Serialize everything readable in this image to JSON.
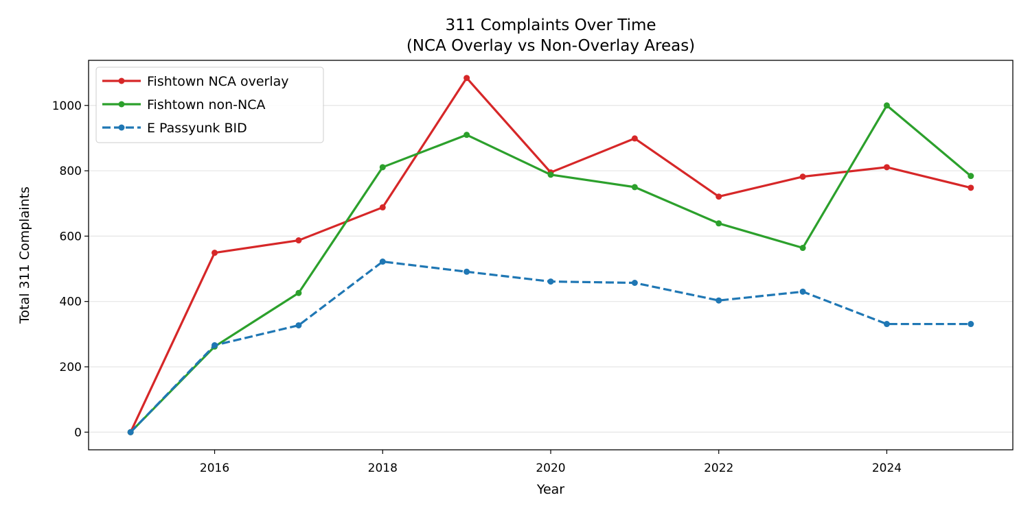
{
  "chart_data": {
    "type": "line",
    "title": "311 Complaints Over Time",
    "subtitle": "(NCA Overlay vs Non-Overlay Areas)",
    "xlabel": "Year",
    "ylabel": "Total 311 Complaints",
    "xlim": [
      2014.5,
      2025.5
    ],
    "ylim": [
      -54,
      1138
    ],
    "xticks": [
      2016,
      2018,
      2020,
      2022,
      2024
    ],
    "yticks": [
      0,
      200,
      400,
      600,
      800,
      1000
    ],
    "grid": "horizontal",
    "legend_position": "top-left",
    "x": [
      2015,
      2016,
      2017,
      2018,
      2019,
      2020,
      2021,
      2022,
      2023,
      2024,
      2025
    ],
    "series": [
      {
        "name": "Fishtown NCA overlay",
        "color": "#d62728",
        "style": "solid",
        "values": [
          0,
          549,
          587,
          688,
          1084,
          795,
          899,
          721,
          782,
          811,
          748
        ]
      },
      {
        "name": "Fishtown non-NCA",
        "color": "#2ca02c",
        "style": "solid",
        "values": [
          0,
          262,
          426,
          811,
          910,
          788,
          750,
          639,
          564,
          1000,
          784
        ]
      },
      {
        "name": "E Passyunk BID",
        "color": "#1f77b4",
        "style": "dashed",
        "values": [
          0,
          266,
          327,
          522,
          491,
          461,
          457,
          403,
          430,
          331,
          331
        ]
      }
    ]
  }
}
